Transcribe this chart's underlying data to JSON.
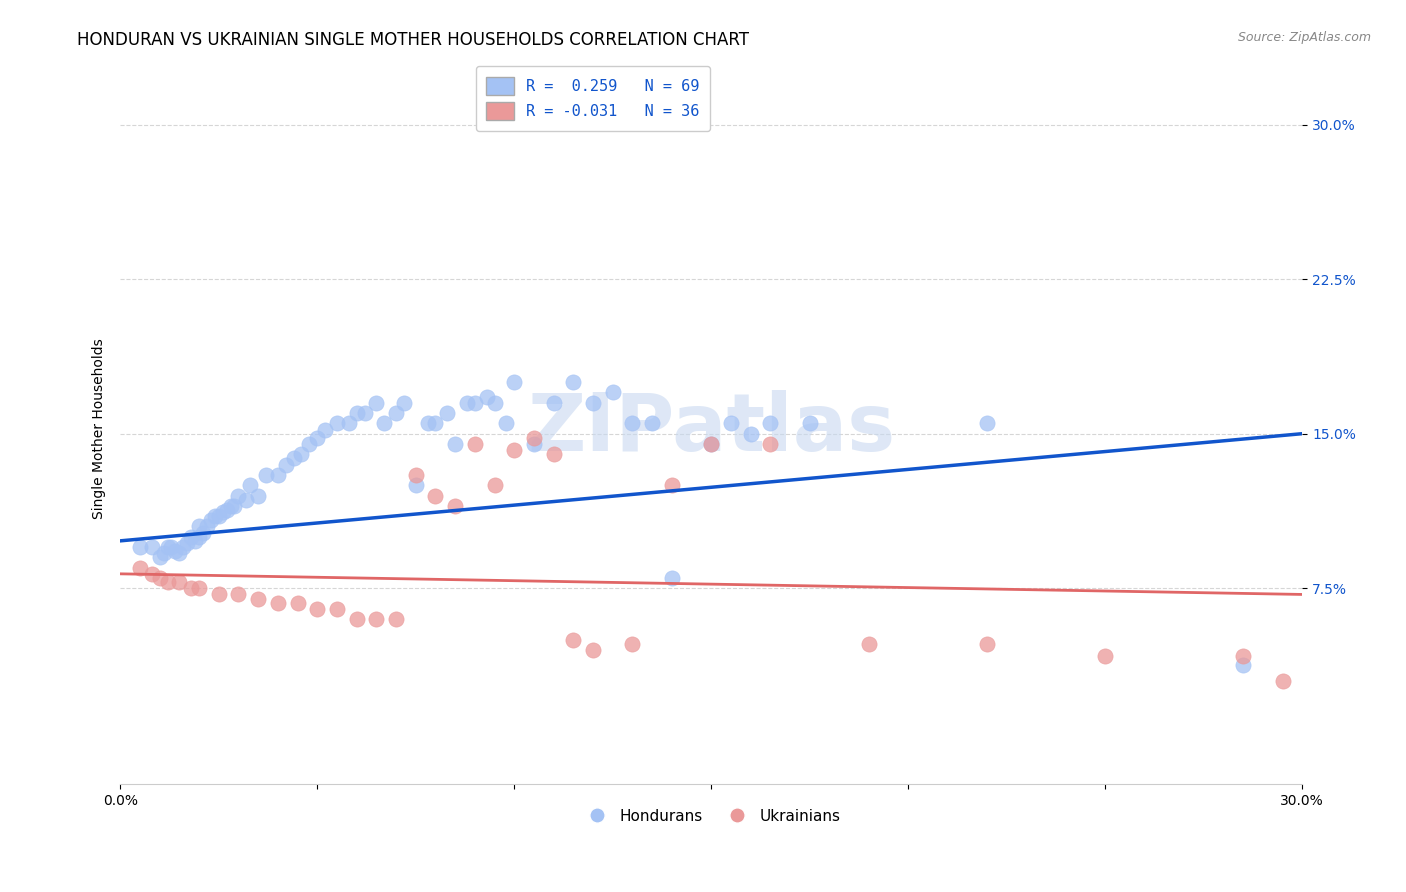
{
  "title": "HONDURAN VS UKRAINIAN SINGLE MOTHER HOUSEHOLDS CORRELATION CHART",
  "source": "Source: ZipAtlas.com",
  "ylabel": "Single Mother Households",
  "ytick_labels": [
    "7.5%",
    "15.0%",
    "22.5%",
    "30.0%"
  ],
  "ytick_values": [
    0.075,
    0.15,
    0.225,
    0.3
  ],
  "xlim": [
    0.0,
    0.3
  ],
  "ylim": [
    -0.02,
    0.325
  ],
  "legend_blue_text": "R =  0.259   N = 69",
  "legend_pink_text": "R = -0.031   N = 36",
  "legend_label_hondurans": "Hondurans",
  "legend_label_ukrainians": "Ukrainians",
  "blue_color": "#a4c2f4",
  "pink_color": "#ea9999",
  "blue_line_color": "#1155cc",
  "pink_line_color": "#e06666",
  "watermark": "ZIPatlas",
  "watermark_color": "#c8d8f0",
  "blue_scatter_x": [
    0.005,
    0.008,
    0.01,
    0.011,
    0.012,
    0.013,
    0.014,
    0.015,
    0.016,
    0.017,
    0.018,
    0.019,
    0.02,
    0.02,
    0.021,
    0.022,
    0.023,
    0.024,
    0.025,
    0.026,
    0.027,
    0.028,
    0.029,
    0.03,
    0.032,
    0.033,
    0.035,
    0.037,
    0.04,
    0.042,
    0.044,
    0.046,
    0.048,
    0.05,
    0.052,
    0.055,
    0.058,
    0.06,
    0.062,
    0.065,
    0.067,
    0.07,
    0.072,
    0.075,
    0.078,
    0.08,
    0.083,
    0.085,
    0.088,
    0.09,
    0.093,
    0.095,
    0.098,
    0.1,
    0.105,
    0.11,
    0.115,
    0.12,
    0.125,
    0.13,
    0.135,
    0.14,
    0.15,
    0.155,
    0.16,
    0.165,
    0.175,
    0.22,
    0.285
  ],
  "blue_scatter_y": [
    0.095,
    0.095,
    0.09,
    0.092,
    0.095,
    0.095,
    0.093,
    0.092,
    0.095,
    0.097,
    0.1,
    0.098,
    0.1,
    0.105,
    0.102,
    0.105,
    0.108,
    0.11,
    0.11,
    0.112,
    0.113,
    0.115,
    0.115,
    0.12,
    0.118,
    0.125,
    0.12,
    0.13,
    0.13,
    0.135,
    0.138,
    0.14,
    0.145,
    0.148,
    0.152,
    0.155,
    0.155,
    0.16,
    0.16,
    0.165,
    0.155,
    0.16,
    0.165,
    0.125,
    0.155,
    0.155,
    0.16,
    0.145,
    0.165,
    0.165,
    0.168,
    0.165,
    0.155,
    0.175,
    0.145,
    0.165,
    0.175,
    0.165,
    0.17,
    0.155,
    0.155,
    0.08,
    0.145,
    0.155,
    0.15,
    0.155,
    0.155,
    0.155,
    0.038
  ],
  "pink_scatter_x": [
    0.005,
    0.008,
    0.01,
    0.012,
    0.015,
    0.018,
    0.02,
    0.025,
    0.03,
    0.035,
    0.04,
    0.045,
    0.05,
    0.055,
    0.06,
    0.065,
    0.07,
    0.075,
    0.08,
    0.085,
    0.09,
    0.095,
    0.1,
    0.105,
    0.11,
    0.115,
    0.12,
    0.13,
    0.14,
    0.15,
    0.165,
    0.19,
    0.22,
    0.25,
    0.285,
    0.295
  ],
  "pink_scatter_y": [
    0.085,
    0.082,
    0.08,
    0.078,
    0.078,
    0.075,
    0.075,
    0.072,
    0.072,
    0.07,
    0.068,
    0.068,
    0.065,
    0.065,
    0.06,
    0.06,
    0.06,
    0.13,
    0.12,
    0.115,
    0.145,
    0.125,
    0.142,
    0.148,
    0.14,
    0.05,
    0.045,
    0.048,
    0.125,
    0.145,
    0.145,
    0.048,
    0.048,
    0.042,
    0.042,
    0.03
  ],
  "blue_trend_x": [
    0.0,
    0.3
  ],
  "blue_trend_y": [
    0.098,
    0.15
  ],
  "pink_trend_x": [
    0.0,
    0.3
  ],
  "pink_trend_y": [
    0.082,
    0.072
  ],
  "background_color": "#ffffff",
  "grid_color": "#cccccc",
  "title_fontsize": 12,
  "axis_label_fontsize": 10,
  "tick_fontsize": 10,
  "legend_fontsize": 11,
  "source_fontsize": 9
}
